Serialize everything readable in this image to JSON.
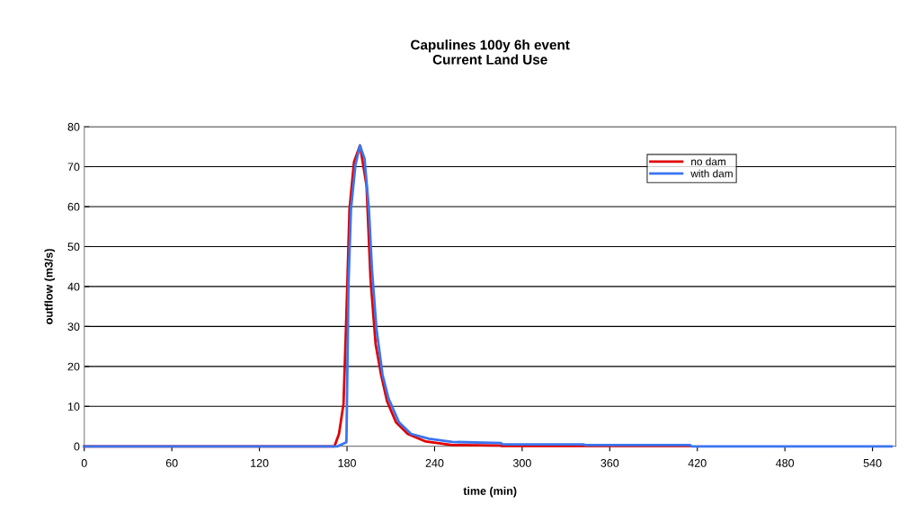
{
  "chart_data": {
    "type": "line",
    "title": "Capulines 100y 6h event\nCurrent Land Use",
    "xlabel": "time (min)",
    "ylabel": "outflow (m3/s)",
    "xlim": [
      0,
      556
    ],
    "xticks": [
      0,
      60,
      120,
      180,
      240,
      300,
      360,
      420,
      480,
      540
    ],
    "ylim": [
      0,
      80
    ],
    "yticks": [
      0,
      10,
      20,
      30,
      40,
      50,
      60,
      70,
      80
    ],
    "grid": "y",
    "legend": "top right",
    "marker": "none",
    "line_style": "solid",
    "series": [
      {
        "name": "no dam",
        "color": "#e00000",
        "x": [
          0,
          171.4,
          174.5,
          177.6,
          179.6,
          181.7,
          184.8,
          188.9,
          193.4,
          196.1,
          199.6,
          203.3,
          207.4,
          213.6,
          221.6,
          234,
          252,
          285,
          286,
          415
        ],
        "values": [
          0,
          0,
          3.1,
          10.6,
          33,
          59.3,
          71.2,
          75.3,
          65.2,
          42,
          25.6,
          18,
          11.3,
          6,
          3.1,
          1.2,
          0.3,
          0.2,
          0.1,
          0.1
        ]
      },
      {
        "name": "with dam",
        "color": "#3a75f0",
        "x": [
          0,
          173.5,
          179.6,
          181,
          182.7,
          185.8,
          188.9,
          192,
          195,
          197.1,
          200.2,
          204.3,
          208.4,
          215.6,
          223.9,
          236.2,
          252,
          285.6,
          286.6,
          342,
          343,
          415,
          416,
          553
        ],
        "values": [
          0,
          0,
          1,
          40.5,
          59.3,
          70.5,
          75.3,
          72,
          59.3,
          44.3,
          29.3,
          18,
          12,
          6,
          3.1,
          1.9,
          1.1,
          0.8,
          0.5,
          0.5,
          0.3,
          0.3,
          0,
          0
        ]
      }
    ]
  }
}
